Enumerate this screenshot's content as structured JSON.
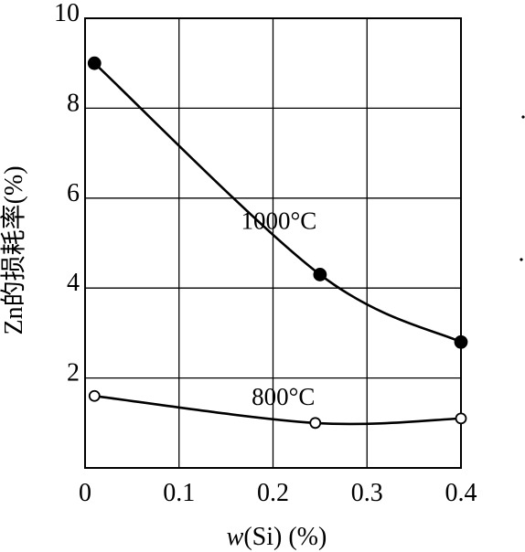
{
  "chart_data": {
    "type": "line",
    "xlabel": "w(Si) (%)",
    "xlabel_var": "w",
    "xlabel_rest": "(Si) (%)",
    "ylabel": "Zn的损耗率(%)",
    "xlim": [
      0,
      0.4
    ],
    "ylim": [
      0,
      10
    ],
    "x_ticks": [
      "0",
      "0.1",
      "0.2",
      "0.3",
      "0.4"
    ],
    "y_ticks": [
      "2",
      "4",
      "6",
      "8",
      "10"
    ],
    "grid": true,
    "series": [
      {
        "name": "1000°C",
        "marker": "filled-circle",
        "x": [
          0.01,
          0.25,
          0.4
        ],
        "y": [
          9.0,
          4.3,
          2.8
        ]
      },
      {
        "name": "800°C",
        "marker": "open-circle",
        "x": [
          0.01,
          0.245,
          0.4
        ],
        "y": [
          1.6,
          1.0,
          1.1
        ]
      }
    ]
  }
}
